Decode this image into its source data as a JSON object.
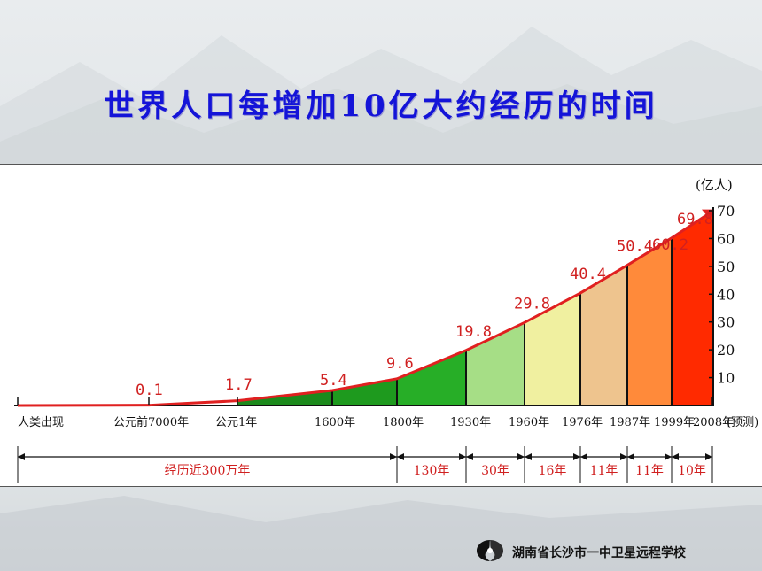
{
  "slide": {
    "title": "世界人口每增加10亿大约经历的时间",
    "footer_text": "湖南省长沙市一中卫星远程学校"
  },
  "chart_data": {
    "type": "area",
    "title": "",
    "unit_label": "(亿人)",
    "y_ticks": [
      10,
      20,
      30,
      40,
      50,
      60,
      70
    ],
    "ylim": [
      0,
      70
    ],
    "grid": false,
    "points": [
      {
        "x_label": "人类出现",
        "value": null
      },
      {
        "x_label": "公元前7000年",
        "value": 0.1
      },
      {
        "x_label": "公元1年",
        "value": 1.7
      },
      {
        "x_label": "1600年",
        "value": 5.4
      },
      {
        "x_label": "1800年",
        "value": 9.6
      },
      {
        "x_label": "1930年",
        "value": 19.8
      },
      {
        "x_label": "1960年",
        "value": 29.8
      },
      {
        "x_label": "1976年",
        "value": 40.4
      },
      {
        "x_label": "1987年",
        "value": 50.4
      },
      {
        "x_label": "1999年",
        "value": 60.2
      },
      {
        "x_label": "2008年",
        "value": 69.8
      }
    ],
    "value_labels": [
      "0.1",
      "1.7",
      "5.4",
      "9.6",
      "19.8",
      "29.8",
      "40.4",
      "50.4",
      "60.2",
      "69.8"
    ],
    "forecast_label": "(预测)",
    "intervals": [
      {
        "label": "经历近300万年",
        "from": "人类出现",
        "to": "1800年"
      },
      {
        "label": "130年",
        "from": "1800年",
        "to": "1930年"
      },
      {
        "label": "30年",
        "from": "1930年",
        "to": "1960年"
      },
      {
        "label": "16年",
        "from": "1960年",
        "to": "1976年"
      },
      {
        "label": "11年",
        "from": "1976年",
        "to": "1987年"
      },
      {
        "label": "11年",
        "from": "1987年",
        "to": "1999年"
      },
      {
        "label": "10年",
        "from": "1999年",
        "to": "2008年"
      }
    ],
    "segment_colors": [
      "#1c8a1c",
      "#1e9a1e",
      "#27ae27",
      "#a6de86",
      "#f0f0a0",
      "#eec48e",
      "#ff8a3a",
      "#ff2a00"
    ],
    "line_color": "#e02020",
    "label_color": "#d02020"
  }
}
